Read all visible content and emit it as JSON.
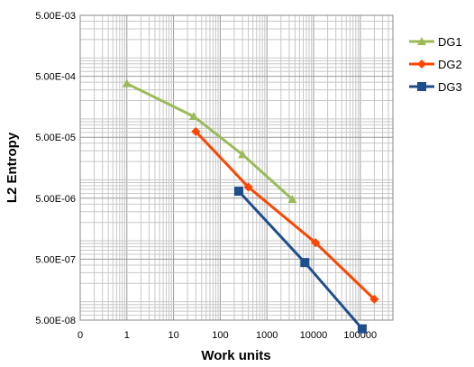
{
  "chart_data": {
    "type": "line",
    "title": "",
    "xlabel": "Work units",
    "ylabel": "L2 Entropy",
    "x_scale": "log",
    "y_scale": "log",
    "xlim": [
      0.1,
      500000
    ],
    "ylim": [
      5e-08,
      0.005
    ],
    "x_tick_labels": [
      "0",
      "1",
      "10",
      "100",
      "1000",
      "10000",
      "100000"
    ],
    "y_tick_labels": [
      "5.00E-08",
      "5.00E-07",
      "5.00E-06",
      "5.00E-05",
      "5.00E-04",
      "5.00E-03"
    ],
    "grid": true,
    "legend_position": "right",
    "series": [
      {
        "name": "DG1",
        "color": "#9bbb59",
        "marker": "triangle",
        "points": [
          [
            1,
            0.00038
          ],
          [
            27,
            0.00011
          ],
          [
            300,
            2.6e-05
          ],
          [
            3500,
            4.8e-06
          ]
        ]
      },
      {
        "name": "DG2",
        "color": "#ff4500",
        "marker": "diamond",
        "points": [
          [
            30,
            6.2e-05
          ],
          [
            400,
            7.6e-06
          ],
          [
            11000,
            9.3e-07
          ],
          [
            200000,
            1.1e-07
          ]
        ]
      },
      {
        "name": "DG3",
        "color": "#1f4e8c",
        "marker": "square",
        "points": [
          [
            250,
            6.5e-06
          ],
          [
            6500,
            4.4e-07
          ],
          [
            110000,
            3.6e-08
          ]
        ]
      }
    ]
  }
}
